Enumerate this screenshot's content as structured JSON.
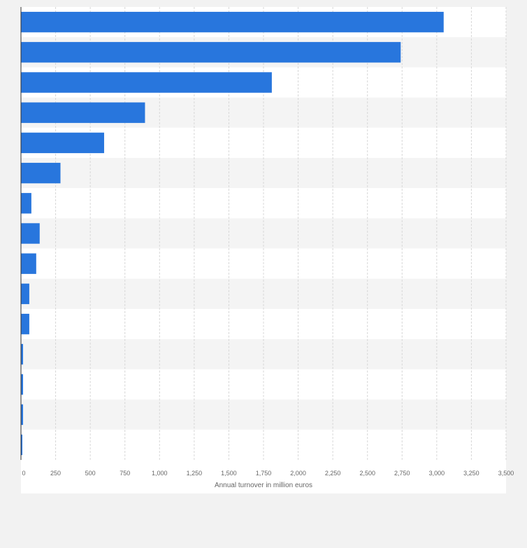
{
  "chart_data": {
    "type": "bar",
    "orientation": "horizontal",
    "categories": [
      "",
      "",
      "",
      "",
      "",
      "",
      "",
      "",
      "",
      "",
      "",
      "",
      "",
      "",
      ""
    ],
    "values": [
      3050,
      2740,
      1810,
      895,
      600,
      285,
      75,
      135,
      110,
      60,
      60,
      15,
      15,
      15,
      10
    ],
    "title": "",
    "xlabel": "Annual turnover in million euros",
    "ylabel": "",
    "xlim": [
      0,
      3500
    ],
    "xticks": [
      0,
      250,
      500,
      750,
      1000,
      1250,
      1500,
      1750,
      2000,
      2250,
      2500,
      2750,
      3000,
      3250,
      3500
    ],
    "xtick_labels": [
      "0",
      "250",
      "500",
      "750",
      "1,000",
      "1,250",
      "1,500",
      "1,750",
      "2,000",
      "2,250",
      "2,500",
      "2,750",
      "3,000",
      "3,250",
      "3,500"
    ],
    "grid": true,
    "bar_color": "#2876dd",
    "band_colors": [
      "#ffffff",
      "#f4f4f4"
    ],
    "background": "#f2f2f2",
    "plot_background": "#ffffff"
  }
}
